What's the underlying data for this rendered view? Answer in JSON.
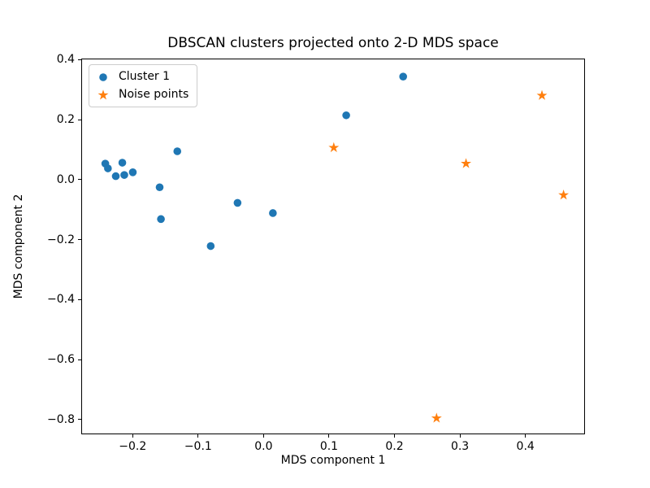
{
  "chart_data": {
    "type": "scatter",
    "title": "DBSCAN clusters projected onto 2-D MDS space",
    "xlabel": "MDS component 1",
    "ylabel": "MDS component 2",
    "xlim": [
      -0.2785,
      0.491
    ],
    "ylim": [
      -0.8495,
      0.4035
    ],
    "grid": false,
    "background_color": "#ffffff",
    "spine_color": "#000000",
    "x_ticks": {
      "values": [
        -0.2,
        -0.1,
        0.0,
        0.1,
        0.2,
        0.3,
        0.4
      ],
      "labels": [
        "−0.2",
        "−0.1",
        "0.0",
        "0.1",
        "0.2",
        "0.3",
        "0.4"
      ]
    },
    "y_ticks": {
      "values": [
        0.4,
        0.2,
        0.0,
        -0.2,
        -0.4,
        -0.6,
        -0.8
      ],
      "labels": [
        "0.4",
        "0.2",
        "0.0",
        "−0.2",
        "−0.4",
        "−0.6",
        "−0.8"
      ]
    },
    "legend": {
      "position": "upper left",
      "entries": [
        {
          "label": "Cluster 1",
          "marker": "circle",
          "color": "#1f77b4"
        },
        {
          "label": "Noise points",
          "marker": "star",
          "color": "#ff7f0e"
        }
      ]
    },
    "series": [
      {
        "name": "Cluster 1",
        "marker": "circle",
        "color": "#1f77b4",
        "points": [
          [
            -0.243,
            0.056
          ],
          [
            -0.239,
            0.04
          ],
          [
            -0.227,
            0.014
          ],
          [
            -0.217,
            0.059
          ],
          [
            -0.214,
            0.018
          ],
          [
            -0.201,
            0.027
          ],
          [
            -0.16,
            -0.023
          ],
          [
            -0.158,
            -0.129
          ],
          [
            -0.133,
            0.097
          ],
          [
            -0.082,
            -0.219
          ],
          [
            -0.041,
            -0.075
          ],
          [
            0.013,
            -0.109
          ],
          [
            0.125,
            0.217
          ],
          [
            0.212,
            0.346
          ]
        ]
      },
      {
        "name": "Noise points",
        "marker": "star",
        "color": "#ff7f0e",
        "points": [
          [
            0.106,
            0.109
          ],
          [
            0.263,
            -0.793
          ],
          [
            0.308,
            0.056
          ],
          [
            0.424,
            0.283
          ],
          [
            0.457,
            -0.049
          ]
        ]
      }
    ]
  }
}
